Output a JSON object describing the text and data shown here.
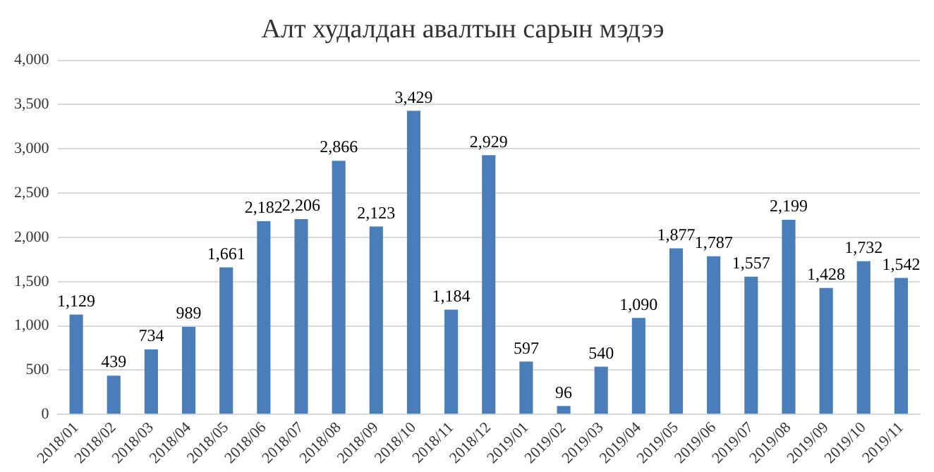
{
  "chart_data": {
    "type": "bar",
    "title": "Алт худалдан авалтын сарын мэдээ",
    "categories": [
      "2018/01",
      "2018/02",
      "2018/03",
      "2018/04",
      "2018/05",
      "2018/06",
      "2018/07",
      "2018/08",
      "2018/09",
      "2018/10",
      "2018/11",
      "2018/12",
      "2019/01",
      "2019/02",
      "2019/03",
      "2019/04",
      "2019/05",
      "2019/06",
      "2019/07",
      "2019/08",
      "2019/09",
      "2019/10",
      "2019/11"
    ],
    "values": [
      1129,
      439,
      734,
      989,
      1661,
      2182,
      2206,
      2866,
      2123,
      3429,
      1184,
      2929,
      597,
      96,
      540,
      1090,
      1877,
      1787,
      1557,
      2199,
      1428,
      1732,
      1542
    ],
    "value_labels": [
      "1,129",
      "439",
      "734",
      "989",
      "1,661",
      "2,182",
      "2,206",
      "2,866",
      "2,123",
      "3,429",
      "1,184",
      "2,929",
      "597",
      "96",
      "540",
      "1,090",
      "1,877",
      "1,787",
      "1,557",
      "2,199",
      "1,428",
      "1,732",
      "1,542"
    ],
    "color": "#4a7ebb",
    "ylim": [
      0,
      4000
    ],
    "yticks": [
      0,
      {
        "value": 500,
        "label": "500"
      },
      {
        "value": 1000,
        "label": "1,000"
      },
      {
        "value": 1500,
        "label": "1,500"
      },
      {
        "value": 2000,
        "label": "2,000"
      },
      {
        "value": 2500,
        "label": "2,500"
      },
      {
        "value": 3000,
        "label": "3,000"
      },
      {
        "value": 3500,
        "label": "3,500"
      },
      {
        "value": 4000,
        "label": "4,000"
      }
    ],
    "grid": "y",
    "legend": false
  }
}
